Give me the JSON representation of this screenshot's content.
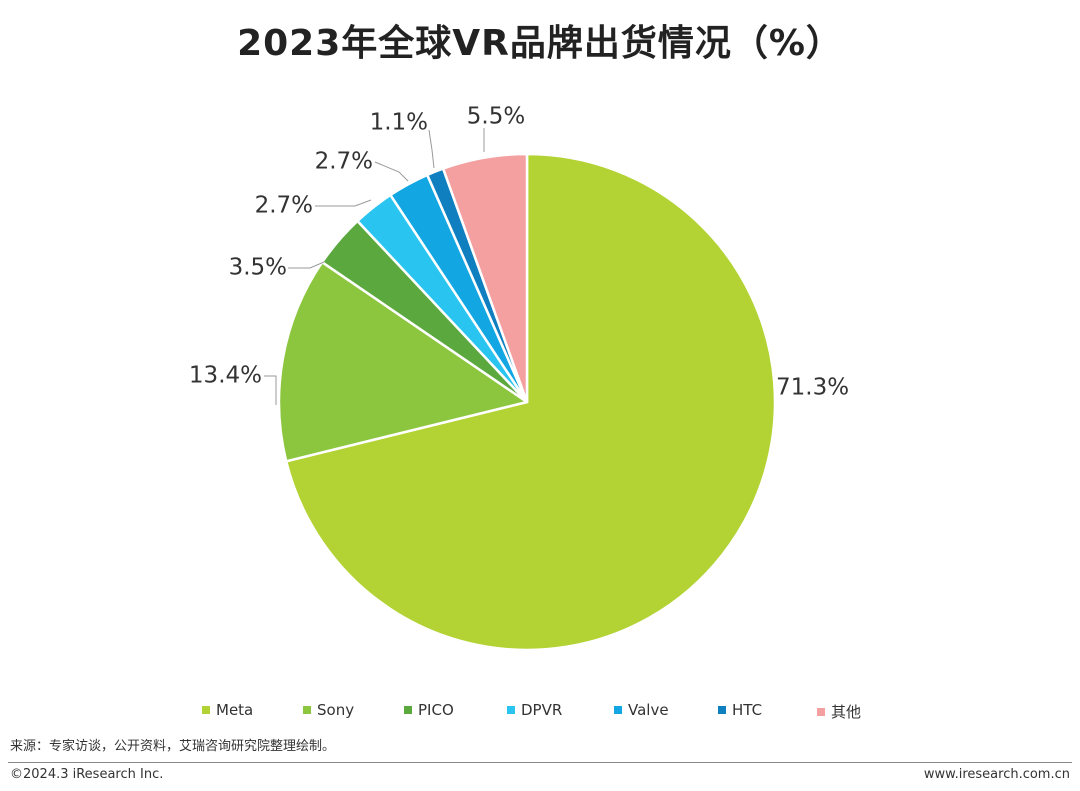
{
  "title": "2023年全球VR品牌出货情况（%）",
  "chart_data": {
    "type": "pie",
    "title": "2023年全球VR品牌出货情况（%）",
    "unit": "%",
    "slices": [
      {
        "name": "Meta",
        "value": 71.3,
        "label": "71.3%",
        "color": "#b3d335"
      },
      {
        "name": "Sony",
        "value": 13.4,
        "label": "13.4%",
        "color": "#8cc63f"
      },
      {
        "name": "PICO",
        "value": 3.5,
        "label": "3.5%",
        "color": "#5aa83e"
      },
      {
        "name": "DPVR",
        "value": 2.7,
        "label": "2.7%",
        "color": "#29c5f0"
      },
      {
        "name": "Valve",
        "value": 2.7,
        "label": "2.7%",
        "color": "#12a6e3"
      },
      {
        "name": "HTC",
        "value": 1.1,
        "label": "1.1%",
        "color": "#0f7fc0"
      },
      {
        "name": "其他",
        "value": 5.5,
        "label": "5.5%",
        "color": "#f4a0a0"
      }
    ],
    "legend_position": "bottom"
  },
  "source": "来源：专家访谈，公开资料，艾瑞咨询研究院整理绘制。",
  "footer": {
    "copyright": "©2024.3 iResearch Inc.",
    "website": "www.iresearch.com.cn"
  }
}
